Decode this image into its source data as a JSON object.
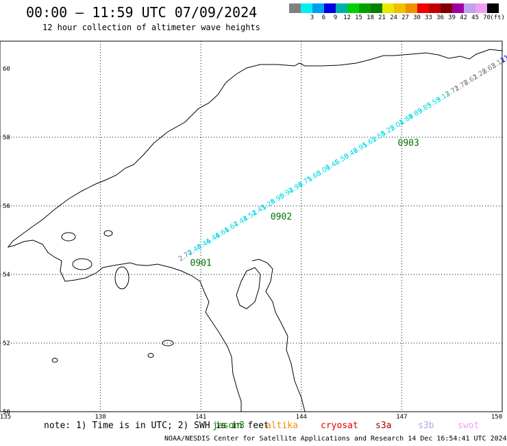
{
  "header": {
    "title": "00:00 — 11:59 UTC 07/09/2024",
    "subtitle": "12 hour collection of altimeter wave heights"
  },
  "legend": {
    "unit": "(ft)",
    "swatches": [
      {
        "color": "#808080",
        "label": ""
      },
      {
        "color": "#00f0f0",
        "label": "3"
      },
      {
        "color": "#00a0f0",
        "label": "6"
      },
      {
        "color": "#0000e0",
        "label": "9"
      },
      {
        "color": "#00b0b0",
        "label": "12"
      },
      {
        "color": "#00d000",
        "label": "15"
      },
      {
        "color": "#00a000",
        "label": "18"
      },
      {
        "color": "#008000",
        "label": "21"
      },
      {
        "color": "#e8e800",
        "label": "24"
      },
      {
        "color": "#f0c000",
        "label": "27"
      },
      {
        "color": "#f09000",
        "label": "30"
      },
      {
        "color": "#f00000",
        "label": "33"
      },
      {
        "color": "#c00000",
        "label": "36"
      },
      {
        "color": "#800000",
        "label": "39"
      },
      {
        "color": "#a000a0",
        "label": "42"
      },
      {
        "color": "#c0a0f0",
        "label": "45"
      },
      {
        "color": "#f0a0f0",
        "label": "70"
      },
      {
        "color": "#000000",
        "label": ""
      }
    ]
  },
  "axes": {
    "lat_labels": [
      "60",
      "58",
      "56",
      "54",
      "52",
      "50"
    ],
    "lon_labels": [
      "135",
      "138",
      "141",
      "144",
      "147",
      "150"
    ]
  },
  "map_data": {
    "lon_range": [
      135,
      150
    ],
    "lat_range": [
      50,
      60
    ],
    "track_labels": [
      {
        "text": "0901",
        "lon": 141.0,
        "lat": 54.25
      },
      {
        "text": "0902",
        "lon": 143.4,
        "lat": 55.6
      },
      {
        "text": "0903",
        "lon": 147.2,
        "lat": 57.75
      }
    ],
    "track_values": [
      "2.72",
      "4.40",
      "4.46",
      "4.46",
      "4.61",
      "4.67",
      "4.43",
      "4.52",
      "4.41",
      "5.24",
      "5.90",
      "5.92",
      "4.99",
      "4.71",
      "5.63",
      "6.07",
      "6.45",
      "6.50",
      "6.47",
      "6.91",
      "5.62",
      "5.54",
      "5.22",
      "5.01",
      "4.89",
      "4.89",
      "3.85",
      "3.59",
      "3.13",
      "2.71",
      "2.78",
      "2.61",
      "2.28",
      "2.65",
      "2.12",
      "11.04"
    ],
    "high_value": "11.04"
  },
  "footer": {
    "note": "note: 1) Time is in UTC; 2) SWH is in feet",
    "credit": "NOAA/NESDIS Center for Satellite Applications and Research   14 Dec 16:54:41 UTC 2024",
    "satellites": [
      {
        "name": "jason3",
        "color": "#008000"
      },
      {
        "name": "altika",
        "color": "#f09000"
      },
      {
        "name": "cryosat",
        "color": "#e00000"
      },
      {
        "name": "s3a",
        "color": "#a00000"
      },
      {
        "name": "s3b",
        "color": "#b8a0f0"
      },
      {
        "name": "swot",
        "color": "#f0a0f0"
      }
    ]
  }
}
